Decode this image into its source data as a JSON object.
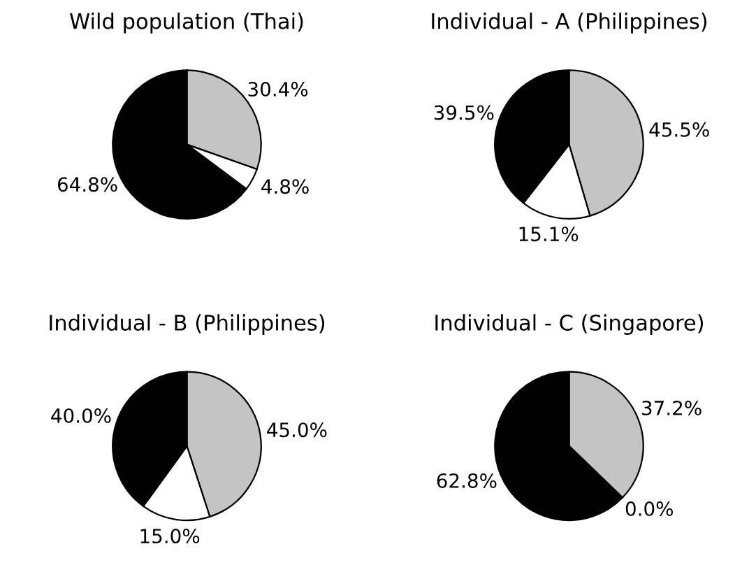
{
  "chart_data": [
    {
      "type": "pie",
      "title": "Wild population (Thai)",
      "categories": [
        null,
        null,
        null
      ],
      "values": [
        30.4,
        4.8,
        64.8
      ],
      "colors": [
        "#c4c4c4",
        "#ffffff",
        "#000000"
      ],
      "value_labels": [
        "30.4%",
        "4.8%",
        "64.8%"
      ]
    },
    {
      "type": "pie",
      "title": "Individual - A (Philippines)",
      "categories": [
        null,
        null,
        null
      ],
      "values": [
        45.5,
        15.1,
        39.5
      ],
      "colors": [
        "#c4c4c4",
        "#ffffff",
        "#000000"
      ],
      "value_labels": [
        "45.5%",
        "15.1%",
        "39.5%"
      ]
    },
    {
      "type": "pie",
      "title": "Individual - B (Philippines)",
      "categories": [
        null,
        null,
        null
      ],
      "values": [
        45.0,
        15.0,
        40.0
      ],
      "colors": [
        "#c4c4c4",
        "#ffffff",
        "#000000"
      ],
      "value_labels": [
        "45.0%",
        "15.0%",
        "40.0%"
      ]
    },
    {
      "type": "pie",
      "title": "Individual - C (Singapore)",
      "categories": [
        null,
        null,
        null
      ],
      "values": [
        37.2,
        0.0,
        62.8
      ],
      "colors": [
        "#c4c4c4",
        "#ffffff",
        "#000000"
      ],
      "value_labels": [
        "37.2%",
        "0.0%",
        "62.8%"
      ]
    }
  ]
}
